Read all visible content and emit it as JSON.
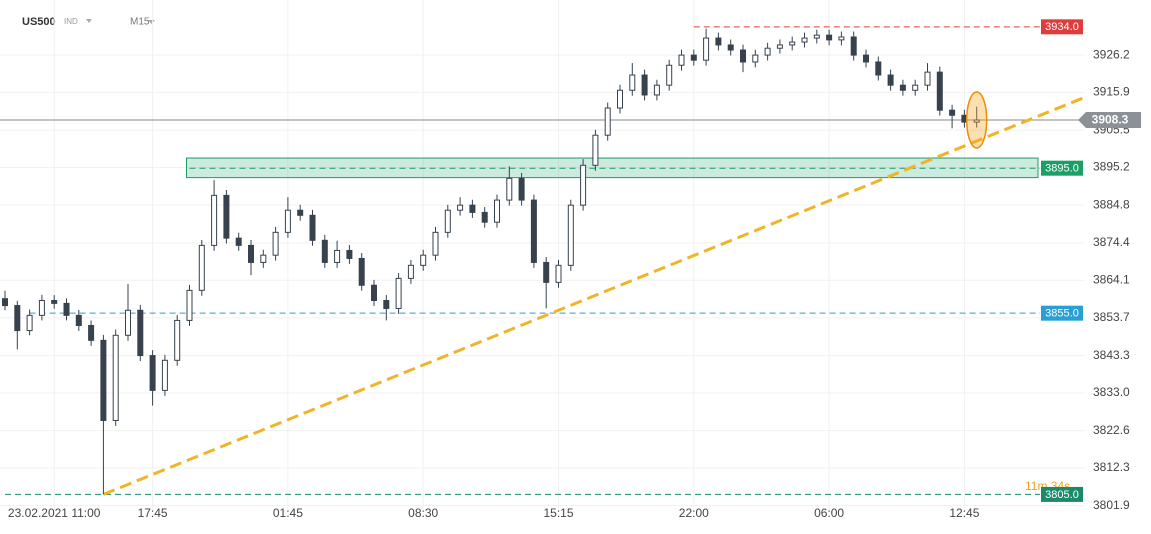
{
  "chart_data": {
    "type": "candlestick",
    "symbol": "US500",
    "market": "IND",
    "timeframe": "M15",
    "categories": [
      null,
      null,
      null,
      null,
      "23.02.2021 11:00",
      null,
      null,
      null,
      null,
      null,
      null,
      null,
      "17:45",
      null,
      null,
      null,
      null,
      null,
      null,
      null,
      null,
      null,
      null,
      "01:45",
      null,
      null,
      null,
      null,
      null,
      null,
      null,
      null,
      null,
      null,
      "08:30",
      null,
      null,
      null,
      null,
      null,
      null,
      null,
      null,
      null,
      null,
      "15:15",
      null,
      null,
      null,
      null,
      null,
      null,
      null,
      null,
      null,
      null,
      "22:00",
      null,
      null,
      null,
      null,
      null,
      null,
      null,
      null,
      null,
      null,
      "06:00",
      null,
      null,
      null,
      null,
      null,
      null,
      null,
      null,
      null,
      null,
      "12:45",
      null
    ],
    "candles": [
      [
        3859.0,
        3861.2,
        3855.8,
        3857.1
      ],
      [
        3857.1,
        3858.4,
        3845.0,
        3850.2
      ],
      [
        3850.2,
        3856.0,
        3848.9,
        3854.4
      ],
      [
        3854.4,
        3860.1,
        3853.0,
        3858.5
      ],
      [
        3858.5,
        3860.0,
        3856.2,
        3857.7
      ],
      [
        3857.7,
        3859.1,
        3853.0,
        3854.4
      ],
      [
        3854.4,
        3855.9,
        3850.1,
        3851.6
      ],
      [
        3851.6,
        3853.0,
        3846.0,
        3847.5
      ],
      [
        3847.5,
        3849.0,
        3805.0,
        3825.4
      ],
      [
        3825.4,
        3850.5,
        3823.9,
        3848.9
      ],
      [
        3848.9,
        3863.0,
        3847.4,
        3855.8
      ],
      [
        3855.8,
        3857.3,
        3841.8,
        3843.3
      ],
      [
        3843.3,
        3844.8,
        3829.5,
        3833.7
      ],
      [
        3833.7,
        3843.5,
        3832.2,
        3842.0
      ],
      [
        3842.0,
        3854.5,
        3840.5,
        3853.0
      ],
      [
        3853.0,
        3862.8,
        3851.5,
        3861.3
      ],
      [
        3861.3,
        3875.2,
        3859.8,
        3873.7
      ],
      [
        3873.7,
        3891.7,
        3872.2,
        3887.5
      ],
      [
        3887.5,
        3889.0,
        3874.2,
        3875.7
      ],
      [
        3875.7,
        3877.2,
        3872.2,
        3873.7
      ],
      [
        3873.7,
        3875.2,
        3865.5,
        3869.0
      ],
      [
        3869.0,
        3872.5,
        3867.5,
        3871.0
      ],
      [
        3871.0,
        3878.8,
        3869.5,
        3877.3
      ],
      [
        3877.3,
        3887.0,
        3875.8,
        3883.4
      ],
      [
        3883.4,
        3884.9,
        3880.5,
        3882.0
      ],
      [
        3882.0,
        3883.5,
        3873.6,
        3875.1
      ],
      [
        3875.1,
        3876.6,
        3867.5,
        3869.0
      ],
      [
        3869.0,
        3875.0,
        3867.5,
        3872.3
      ],
      [
        3872.3,
        3873.8,
        3868.6,
        3870.1
      ],
      [
        3870.1,
        3871.6,
        3861.2,
        3862.7
      ],
      [
        3862.7,
        3864.2,
        3857.0,
        3858.5
      ],
      [
        3858.5,
        3860.0,
        3853.0,
        3856.3
      ],
      [
        3856.3,
        3866.1,
        3854.8,
        3864.6
      ],
      [
        3864.6,
        3869.7,
        3863.1,
        3868.2
      ],
      [
        3868.2,
        3872.5,
        3866.7,
        3871.0
      ],
      [
        3871.0,
        3878.8,
        3869.5,
        3877.3
      ],
      [
        3877.3,
        3884.9,
        3875.8,
        3883.4
      ],
      [
        3883.4,
        3887.0,
        3881.9,
        3884.8
      ],
      [
        3884.8,
        3886.3,
        3881.3,
        3882.8
      ],
      [
        3882.8,
        3884.3,
        3878.6,
        3880.1
      ],
      [
        3880.1,
        3887.7,
        3878.6,
        3886.2
      ],
      [
        3886.2,
        3895.5,
        3884.7,
        3892.2
      ],
      [
        3892.2,
        3893.7,
        3884.7,
        3886.2
      ],
      [
        3886.2,
        3887.7,
        3867.5,
        3869.0
      ],
      [
        3869.0,
        3870.5,
        3856.3,
        3863.5
      ],
      [
        3863.5,
        3869.7,
        3862.0,
        3868.2
      ],
      [
        3868.2,
        3886.3,
        3866.7,
        3884.8
      ],
      [
        3884.8,
        3897.5,
        3883.3,
        3895.8
      ],
      [
        3895.8,
        3905.6,
        3894.3,
        3904.1
      ],
      [
        3904.1,
        3913.1,
        3902.6,
        3911.6
      ],
      [
        3911.6,
        3918.0,
        3910.1,
        3916.5
      ],
      [
        3916.5,
        3924.0,
        3915.0,
        3920.7
      ],
      [
        3920.7,
        3922.2,
        3913.7,
        3915.2
      ],
      [
        3915.2,
        3919.4,
        3913.7,
        3917.9
      ],
      [
        3917.9,
        3924.9,
        3916.4,
        3923.4
      ],
      [
        3923.4,
        3927.7,
        3921.9,
        3926.2
      ],
      [
        3926.2,
        3927.7,
        3923.3,
        3924.8
      ],
      [
        3924.8,
        3933.5,
        3923.3,
        3930.9
      ],
      [
        3930.9,
        3932.4,
        3927.5,
        3929.0
      ],
      [
        3929.0,
        3930.5,
        3926.1,
        3927.6
      ],
      [
        3927.6,
        3929.1,
        3921.5,
        3924.3
      ],
      [
        3924.3,
        3927.7,
        3922.8,
        3926.2
      ],
      [
        3926.2,
        3929.6,
        3924.7,
        3928.1
      ],
      [
        3928.1,
        3930.5,
        3926.6,
        3929.0
      ],
      [
        3929.0,
        3931.3,
        3927.5,
        3929.8
      ],
      [
        3929.8,
        3932.4,
        3928.3,
        3930.9
      ],
      [
        3930.9,
        3933.2,
        3929.4,
        3931.7
      ],
      [
        3931.7,
        3933.2,
        3928.9,
        3930.4
      ],
      [
        3930.4,
        3932.7,
        3928.9,
        3931.2
      ],
      [
        3931.2,
        3932.7,
        3924.7,
        3926.2
      ],
      [
        3926.2,
        3927.7,
        3922.8,
        3924.3
      ],
      [
        3924.3,
        3925.8,
        3919.2,
        3920.7
      ],
      [
        3920.7,
        3922.2,
        3916.4,
        3917.9
      ],
      [
        3917.9,
        3919.4,
        3915.0,
        3916.5
      ],
      [
        3916.5,
        3919.4,
        3915.0,
        3917.9
      ],
      [
        3917.9,
        3924.0,
        3916.4,
        3921.5
      ],
      [
        3921.5,
        3923.0,
        3909.5,
        3911.0
      ],
      [
        3911.0,
        3912.5,
        3906.0,
        3909.6
      ],
      [
        3909.6,
        3911.1,
        3906.2,
        3907.7
      ],
      [
        3907.7,
        3912.0,
        3906.2,
        3908.3
      ]
    ],
    "up_color": "#ffffff",
    "down_color": "#37424e",
    "ylim": [
      3800.7,
      3941.4
    ],
    "yticks": [
      3926.2,
      3915.9,
      3905.5,
      3895.2,
      3884.8,
      3874.4,
      3864.1,
      3853.7,
      3843.3,
      {
        "value": 3833,
        "label": "3833.0"
      },
      3822.6,
      3812.3,
      3801.9
    ],
    "grid": true,
    "levels": [
      {
        "value": 3934,
        "label": "3934.0",
        "color": "#e03c3c",
        "from": 56
      },
      {
        "value": 3895,
        "label": "3895.0",
        "color": "#1aa067",
        "from": 15
      },
      {
        "value": 3855,
        "label": "3855.0",
        "color": "#2a9fd6",
        "from": 2
      },
      {
        "value": 3805,
        "label": "3805.0",
        "color": "#1a8a6a",
        "from": 0
      }
    ],
    "zone": {
      "low": 3892.4,
      "high": 3897.8,
      "from": 15,
      "color": "#1aa067"
    },
    "trendline": {
      "color": "#f0b429",
      "points": [
        [
          8,
          3805
        ],
        [
          87.6,
          3914.3
        ]
      ]
    },
    "countdown": "11m 34s"
  }
}
